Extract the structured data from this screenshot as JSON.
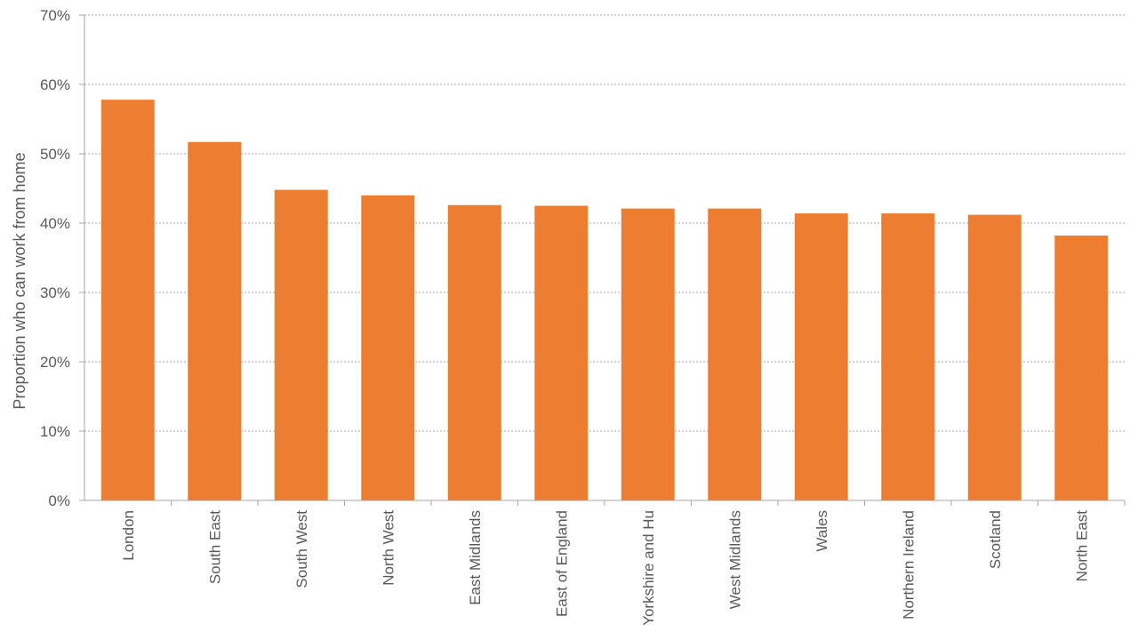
{
  "chart_data": {
    "type": "bar",
    "title": "",
    "xlabel": "",
    "ylabel": "Proportion who can work from home",
    "categories": [
      "London",
      "South East",
      "South West",
      "North West",
      "East Midlands",
      "East of England",
      "Yorkshire and Hu",
      "West Midlands",
      "Wales",
      "Northern Ireland",
      "Scotland",
      "North East"
    ],
    "values": [
      57.8,
      51.7,
      44.8,
      44.0,
      42.6,
      42.5,
      42.1,
      42.1,
      41.4,
      41.4,
      41.2,
      38.2
    ],
    "ylim": [
      0,
      70
    ],
    "yticks": [
      0,
      10,
      20,
      30,
      40,
      50,
      60,
      70
    ],
    "ytick_labels": [
      "0%",
      "10%",
      "20%",
      "30%",
      "40%",
      "50%",
      "60%",
      "70%"
    ],
    "grid": true,
    "legend": "none",
    "bar_color": "#ED7D31"
  }
}
